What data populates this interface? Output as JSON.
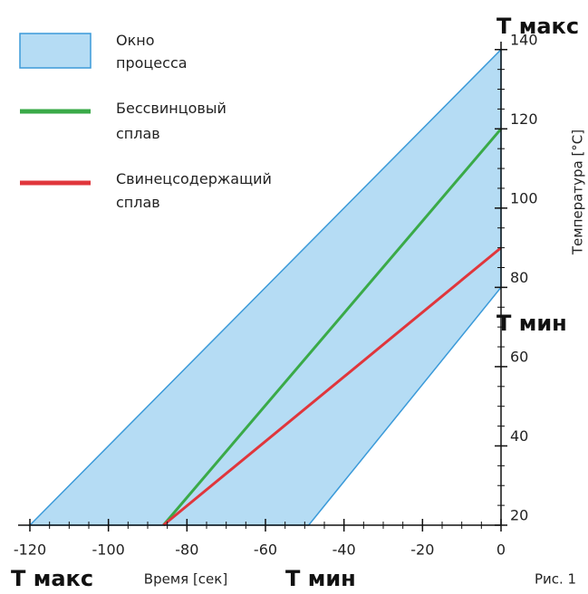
{
  "chart_data": {
    "type": "line",
    "x_label": "Время [сек]",
    "y_label": "Температура [°C]",
    "xlim": [
      -123,
      0
    ],
    "ylim": [
      20,
      142
    ],
    "xticks": [
      -120,
      -100,
      -80,
      -60,
      -40,
      -20,
      0
    ],
    "yticks": [
      20,
      40,
      60,
      80,
      100,
      120,
      140
    ],
    "minor_step": 5,
    "series": [
      {
        "name": "Окно процесса",
        "kind": "area",
        "color": "#b5dcf4",
        "stroke": "#3b9ad9",
        "x": [
          -120,
          0,
          0,
          -49
        ],
        "values": [
          20,
          140,
          80,
          20
        ]
      },
      {
        "name": "Бессвинцовый сплав",
        "kind": "line",
        "color": "#3aaa48",
        "x": [
          -86,
          0
        ],
        "values": [
          20,
          120
        ]
      },
      {
        "name": "Свинецсодержащий сплав",
        "kind": "line",
        "color": "#e0363c",
        "x": [
          -86,
          0
        ],
        "values": [
          20,
          90
        ]
      }
    ],
    "annotations": [
      "T макс",
      "T мин",
      "T макс",
      "T мин"
    ],
    "caption": "Рис. 1"
  }
}
